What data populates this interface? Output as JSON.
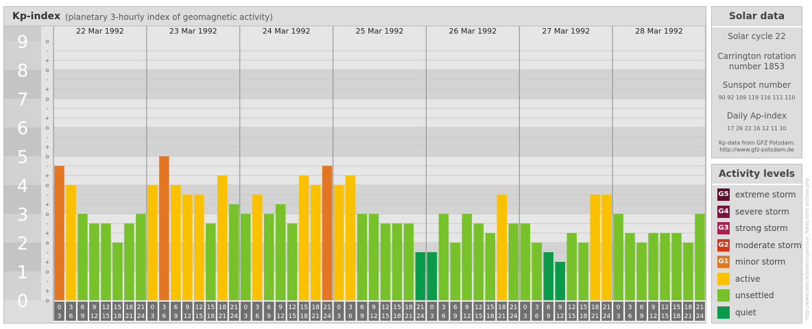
{
  "header": {
    "title": "Kp-index",
    "subtitle": "(planetary 3-hourly index of geomagnetic activity)"
  },
  "chart_data": {
    "type": "bar",
    "title": "Kp-index",
    "subtitle": "(planetary 3-hourly index of geomagnetic activity)",
    "ylim": [
      0,
      9
    ],
    "y_ticks": [
      "0",
      "1",
      "2",
      "3",
      "4",
      "5",
      "6",
      "7",
      "8",
      "9"
    ],
    "minor_tick_labels": [
      "o",
      "+",
      "-"
    ],
    "days": [
      "22 Mar 1992",
      "23 Mar 1992",
      "24 Mar 1992",
      "25 Mar 1992",
      "26 Mar 1992",
      "27 Mar 1992",
      "28 Mar 1992"
    ],
    "interval_starts": [
      "0",
      "3",
      "6",
      "9",
      "12",
      "15",
      "18",
      "21"
    ],
    "interval_ends": [
      "3",
      "6",
      "9",
      "12",
      "15",
      "18",
      "21",
      "24"
    ],
    "values": [
      [
        4.667,
        4.0,
        3.0,
        2.667,
        2.667,
        2.0,
        2.667,
        3.0
      ],
      [
        4.0,
        5.0,
        4.0,
        3.667,
        3.667,
        2.667,
        4.333,
        3.333
      ],
      [
        3.0,
        3.667,
        3.0,
        3.333,
        2.667,
        4.333,
        4.0,
        4.667
      ],
      [
        4.0,
        4.333,
        3.0,
        3.0,
        2.667,
        2.667,
        2.667,
        1.667
      ],
      [
        1.667,
        3.0,
        2.0,
        3.0,
        2.667,
        2.333,
        3.667,
        2.667
      ],
      [
        2.667,
        2.0,
        1.667,
        1.333,
        2.333,
        2.0,
        3.667,
        3.667
      ],
      [
        3.0,
        2.333,
        2.0,
        2.333,
        2.333,
        2.333,
        2.0,
        3.0
      ]
    ],
    "levels": [
      {
        "min": 0,
        "max": 2,
        "color": "#0a9a4a"
      },
      {
        "min": 2,
        "max": 3.5,
        "color": "#77c22a"
      },
      {
        "min": 3.5,
        "max": 4.5,
        "color": "#f9c100"
      },
      {
        "min": 4.5,
        "max": 5.5,
        "color": "#e37622"
      },
      {
        "min": 5.5,
        "max": 6.5,
        "color": "#d0381c"
      },
      {
        "min": 6.5,
        "max": 7.5,
        "color": "#b21e4f"
      },
      {
        "min": 7.5,
        "max": 8.5,
        "color": "#7b1442"
      },
      {
        "min": 8.5,
        "max": 10,
        "color": "#5a0d2c"
      }
    ]
  },
  "solar_data": {
    "title": "Solar data",
    "solar_cycle": "Solar cycle 22",
    "carrington_line1": "Carrington rotation",
    "carrington_line2": "number 1853",
    "sunspot_label": "Sunspot number",
    "sunspot_numbers": "90  92  109  119  116  111  110",
    "ap_label": "Daily Ap-index",
    "ap_numbers": "17  26  22  16  12  11  10",
    "credit_line1": "Kp-data from GFZ Potsdam:",
    "credit_line2": "http://www.gfz-potsdam.de"
  },
  "activity_levels": {
    "title": "Activity levels",
    "items": [
      {
        "code": "G5",
        "label": "extreme storm",
        "color": "#5a0d2c"
      },
      {
        "code": "G4",
        "label": "severe storm",
        "color": "#7b1442"
      },
      {
        "code": "G3",
        "label": "strong storm",
        "color": "#b21e4f"
      },
      {
        "code": "G2",
        "label": "moderate storm",
        "color": "#d0381c"
      },
      {
        "code": "G1",
        "label": "minor storm",
        "color": "#e37622"
      },
      {
        "code": "",
        "label": "active",
        "color": "#f9c100"
      },
      {
        "code": "",
        "label": "unsettled",
        "color": "#77c22a"
      },
      {
        "code": "",
        "label": "quiet",
        "color": "#0a9a4a"
      }
    ]
  },
  "watermark": "http://www.tesis.lebedev.ru/en/sun_flares.html archive.php"
}
